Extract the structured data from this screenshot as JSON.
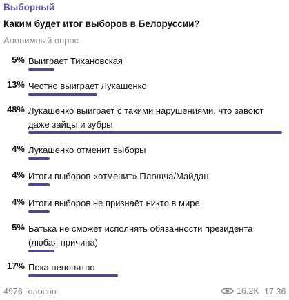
{
  "message": {
    "sender": "Выборный",
    "question": "Каким будет итог выборов в Белоруссии?",
    "poll_type": "Анонимный опрос"
  },
  "options": [
    {
      "percent_label": "5%",
      "percent": 5,
      "text": "Выиграет Тихановская"
    },
    {
      "percent_label": "13%",
      "percent": 13,
      "text": "Честно выиграет Лукашенко"
    },
    {
      "percent_label": "48%",
      "percent": 48,
      "text": "Лукашенко выиграет с такими нарушениями, что завоют даже зайцы и зубры"
    },
    {
      "percent_label": "4%",
      "percent": 4,
      "text": "Лукашенко отменит выборы"
    },
    {
      "percent_label": "4%",
      "percent": 4,
      "text": "Итоги выборов «отменит» Площча/Майдан"
    },
    {
      "percent_label": "4%",
      "percent": 4,
      "text": "Итоги выборов не признаёт никто в мире"
    },
    {
      "percent_label": "5%",
      "percent": 5,
      "text": "Батька не сможет исполнять обязанности президента (любая причина)"
    },
    {
      "percent_label": "17%",
      "percent": 17,
      "text": "Пока непонятно"
    }
  ],
  "footer": {
    "votes": "4976 голосов",
    "views": "16.2K",
    "time": "17:36",
    "views_icon": "eye-icon"
  },
  "colors": {
    "sender": "#5e5ba8",
    "bar": "#4d4a87",
    "muted": "#8a8a8a"
  }
}
